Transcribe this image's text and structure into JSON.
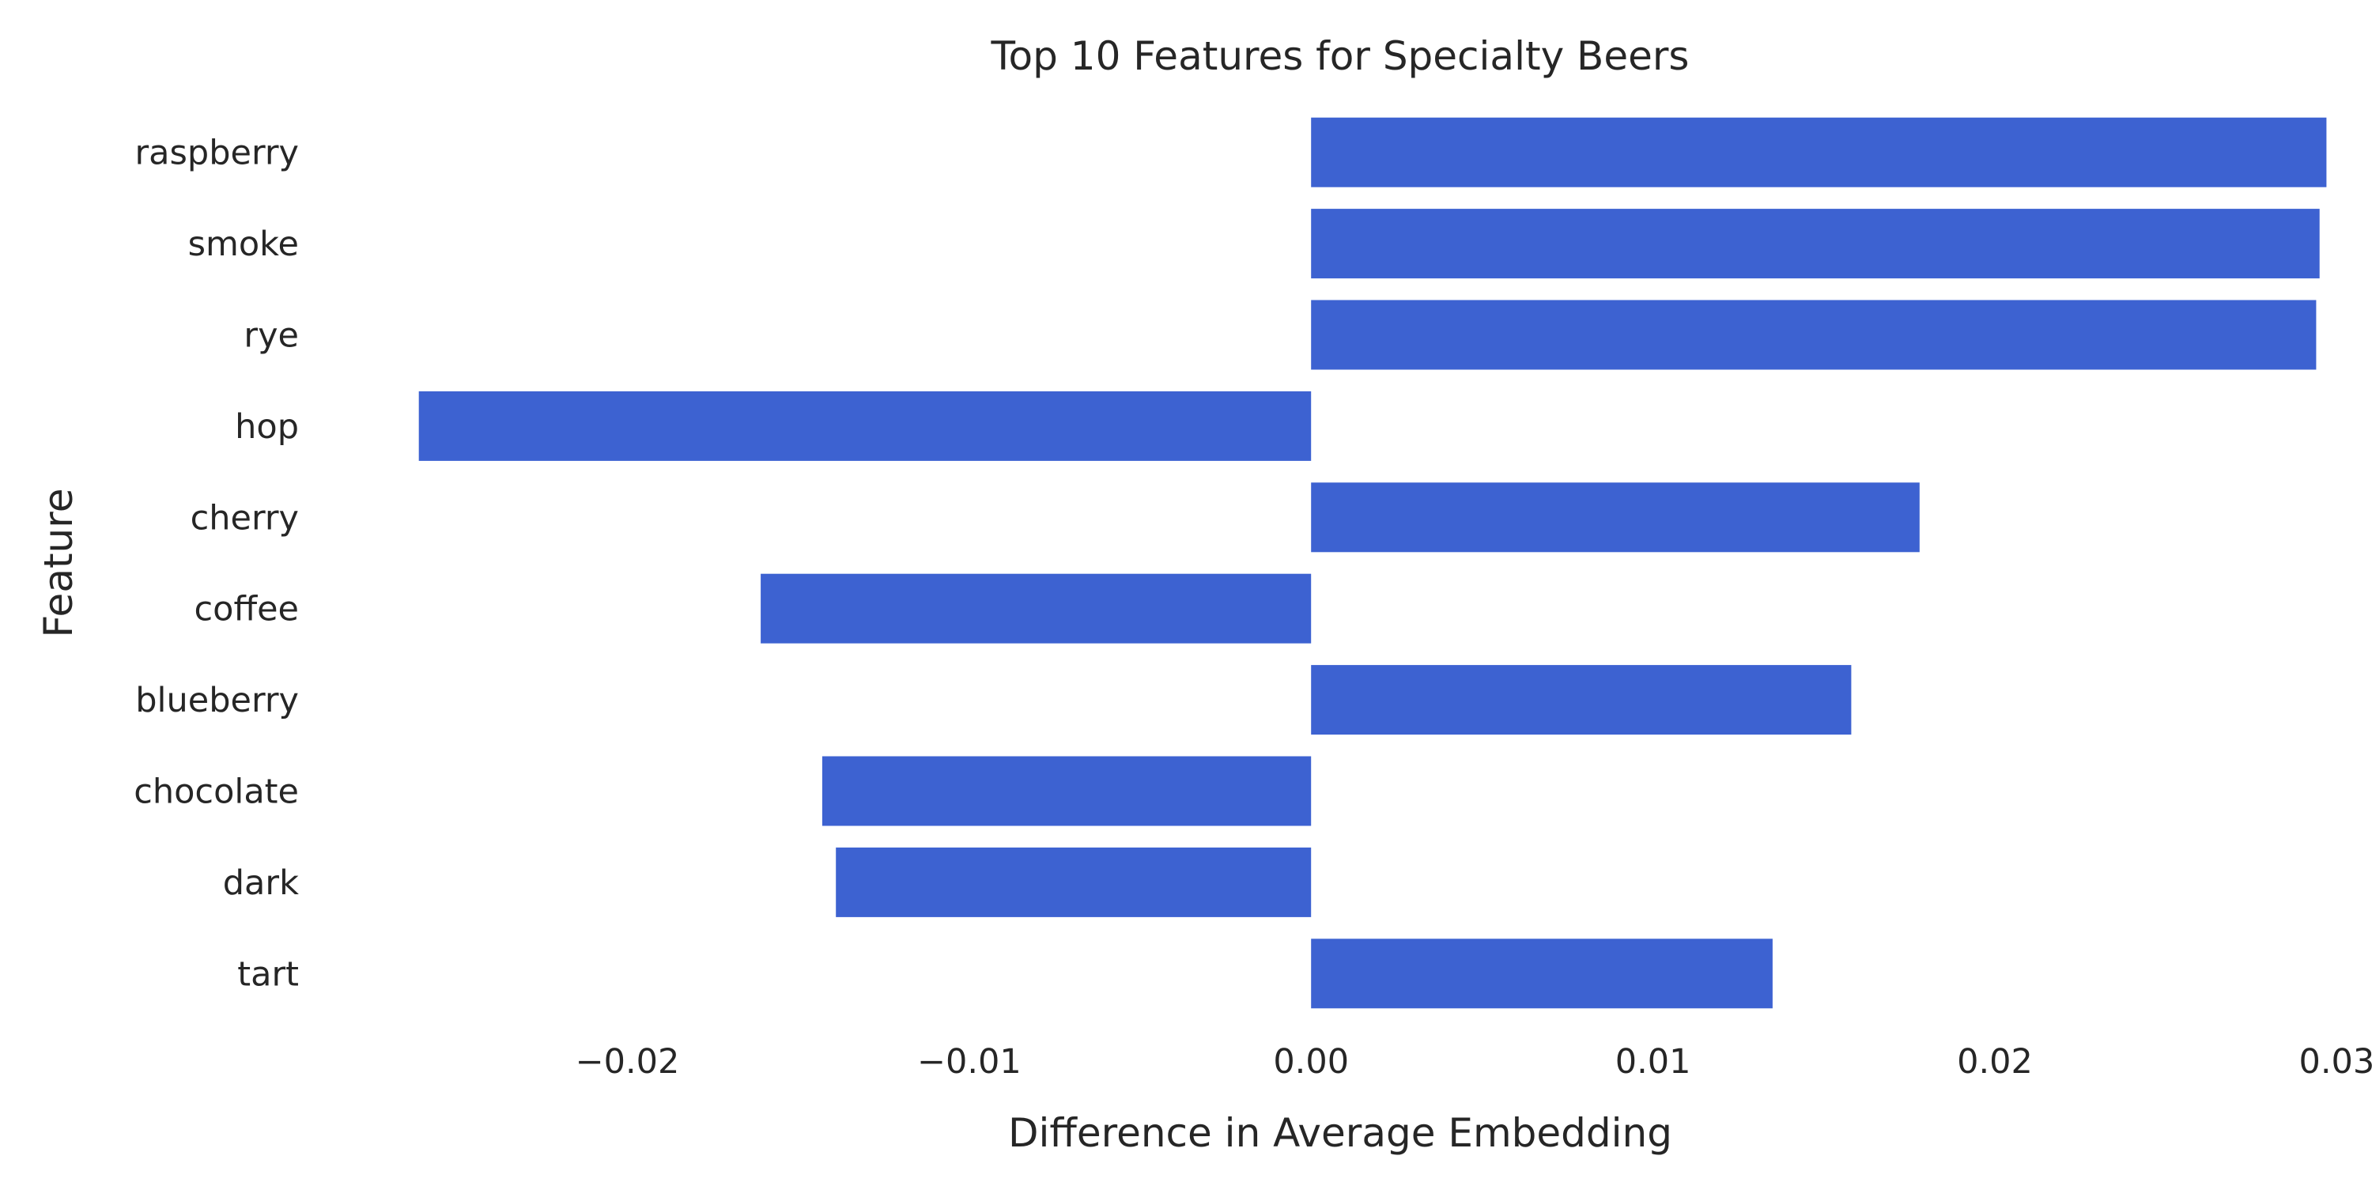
{
  "chart_data": {
    "type": "bar",
    "orientation": "horizontal",
    "title": "Top 10 Features for Specialty Beers",
    "xlabel": "Difference in Average Embedding",
    "ylabel": "Feature",
    "categories": [
      "raspberry",
      "smoke",
      "rye",
      "hop",
      "cherry",
      "coffee",
      "blueberry",
      "chocolate",
      "dark",
      "tart"
    ],
    "values": [
      0.0297,
      0.0295,
      0.0294,
      -0.0261,
      0.0178,
      -0.0161,
      0.0158,
      -0.0143,
      -0.0139,
      0.0135
    ],
    "xticks": [
      -0.02,
      -0.01,
      0.0,
      0.01,
      0.02,
      0.03
    ],
    "xtick_labels": [
      "−0.02",
      "−0.01",
      "0.00",
      "0.01",
      "0.02",
      "0.03"
    ],
    "xlim": [
      -0.0291,
      0.0308
    ],
    "grid": false,
    "bar_color": "#3d62d1"
  }
}
